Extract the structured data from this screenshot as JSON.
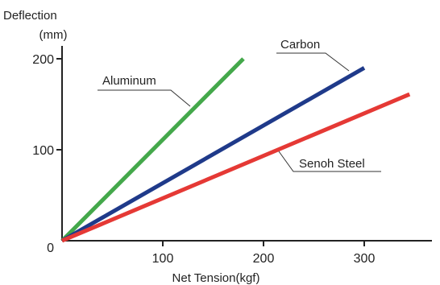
{
  "chart_data": {
    "type": "line",
    "xlabel": "Net Tension(kgf)",
    "ylabel": "Deflection",
    "ylabel_unit": "(mm)",
    "x_ticks": [
      0,
      100,
      200,
      300
    ],
    "y_ticks": [
      0,
      100,
      200
    ],
    "xlim": [
      0,
      370
    ],
    "ylim": [
      0,
      205
    ],
    "grid": false,
    "series": [
      {
        "name": "Aluminum",
        "color": "#44a84b",
        "points": [
          [
            0,
            0
          ],
          [
            180,
            200
          ]
        ]
      },
      {
        "name": "Carbon",
        "color": "#1f3a8a",
        "points": [
          [
            0,
            0
          ],
          [
            300,
            190
          ]
        ]
      },
      {
        "name": "Senoh Steel",
        "color": "#e53935",
        "points": [
          [
            0,
            0
          ],
          [
            345,
            161
          ]
        ]
      }
    ]
  }
}
